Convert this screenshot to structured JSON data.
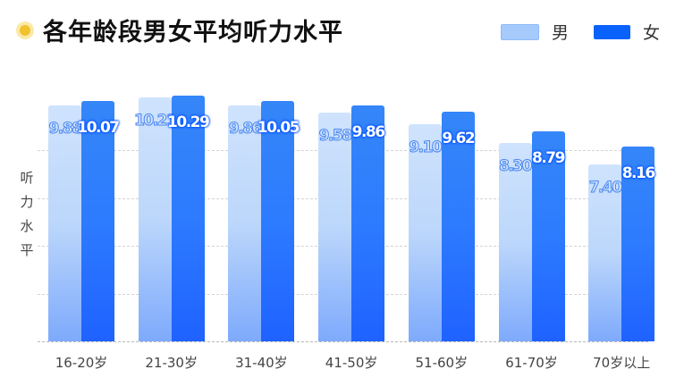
{
  "title": "各年龄段男女平均听力水平",
  "legend": [
    {
      "label": "男",
      "color": "#a6cafc"
    },
    {
      "label": "女",
      "color": "#0a62fc"
    }
  ],
  "ylabel_chars": [
    "听",
    "力",
    "水",
    "平"
  ],
  "chart_data": {
    "type": "bar",
    "title": "各年龄段男女平均听力水平",
    "xlabel": "",
    "ylabel": "听力水平",
    "categories": [
      "16-20岁",
      "21-30岁",
      "31-40岁",
      "41-50岁",
      "51-60岁",
      "61-70岁",
      "70岁以上"
    ],
    "series": [
      {
        "name": "男",
        "values": [
          9.88,
          10.21,
          9.86,
          9.58,
          9.1,
          8.3,
          7.4
        ]
      },
      {
        "name": "女",
        "values": [
          10.07,
          10.29,
          10.05,
          9.86,
          9.62,
          8.79,
          8.16
        ]
      }
    ],
    "value_labels": {
      "男": [
        "9.88",
        "10.21",
        "9.86",
        "9.58",
        "9.10",
        "8.30",
        "7.40"
      ],
      "女": [
        "10.07",
        "10.29",
        "10.05",
        "9.86",
        "9.62",
        "8.79",
        "8.16"
      ]
    },
    "ylim": [
      0,
      10.3
    ],
    "grid": true,
    "gridlines_at": [
      0,
      2,
      4,
      6,
      8
    ],
    "legend_position": "top-right"
  }
}
